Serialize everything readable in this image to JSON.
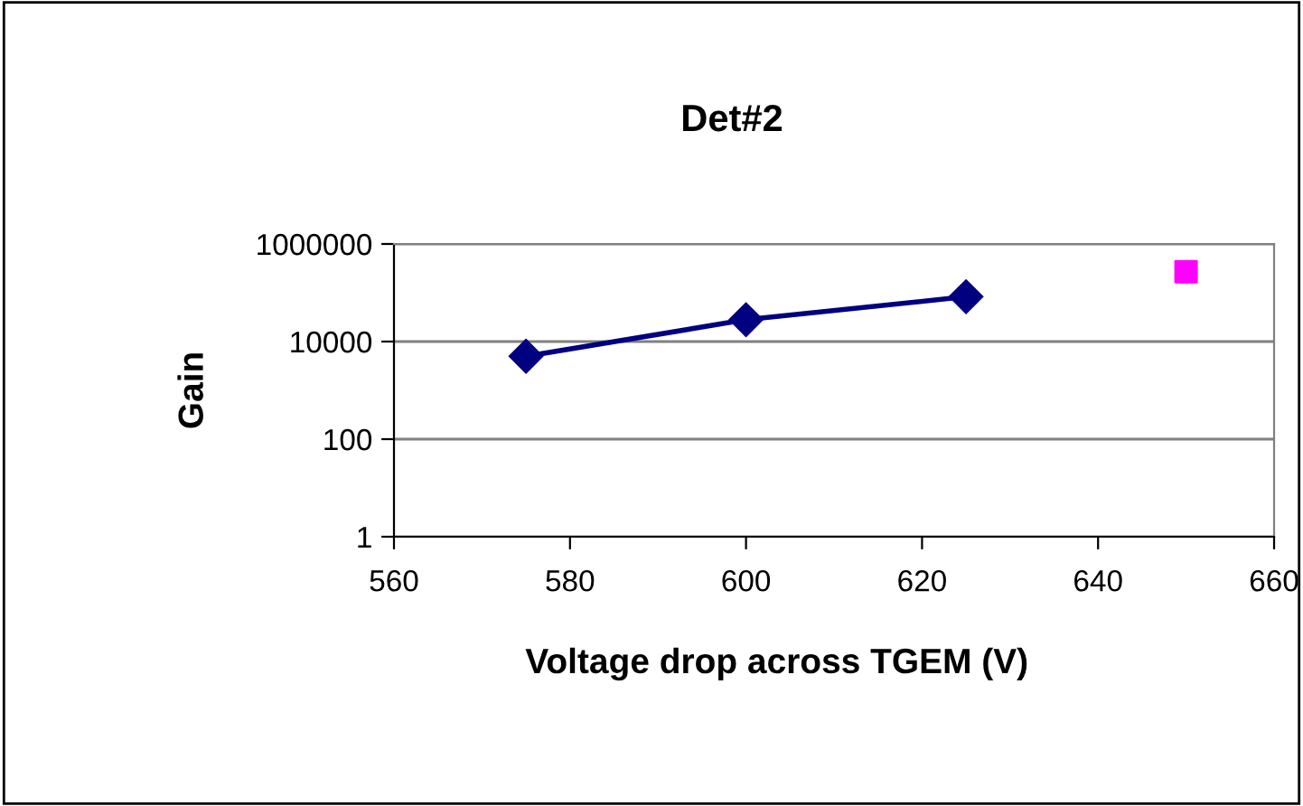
{
  "chart_data": {
    "type": "line",
    "title": "Det#2",
    "xlabel": "Voltage drop across TGEM (V)",
    "ylabel": "Gain",
    "series": [
      {
        "color": "#000080",
        "x": [
          575,
          600,
          625
        ],
        "values": [
          5000,
          28000,
          83000
        ],
        "marker": "diamond"
      },
      {
        "type": "scatter",
        "color": "#ff00ff",
        "x": [
          650
        ],
        "values": [
          270000
        ],
        "marker": "square"
      }
    ],
    "log": "y",
    "xlim": [
      560,
      660
    ],
    "xticks": [
      560,
      580,
      600,
      620,
      640,
      660
    ],
    "ylim": [
      1,
      1000000
    ],
    "yticks": [
      1,
      100,
      10000,
      1000000
    ],
    "grid": "y"
  }
}
